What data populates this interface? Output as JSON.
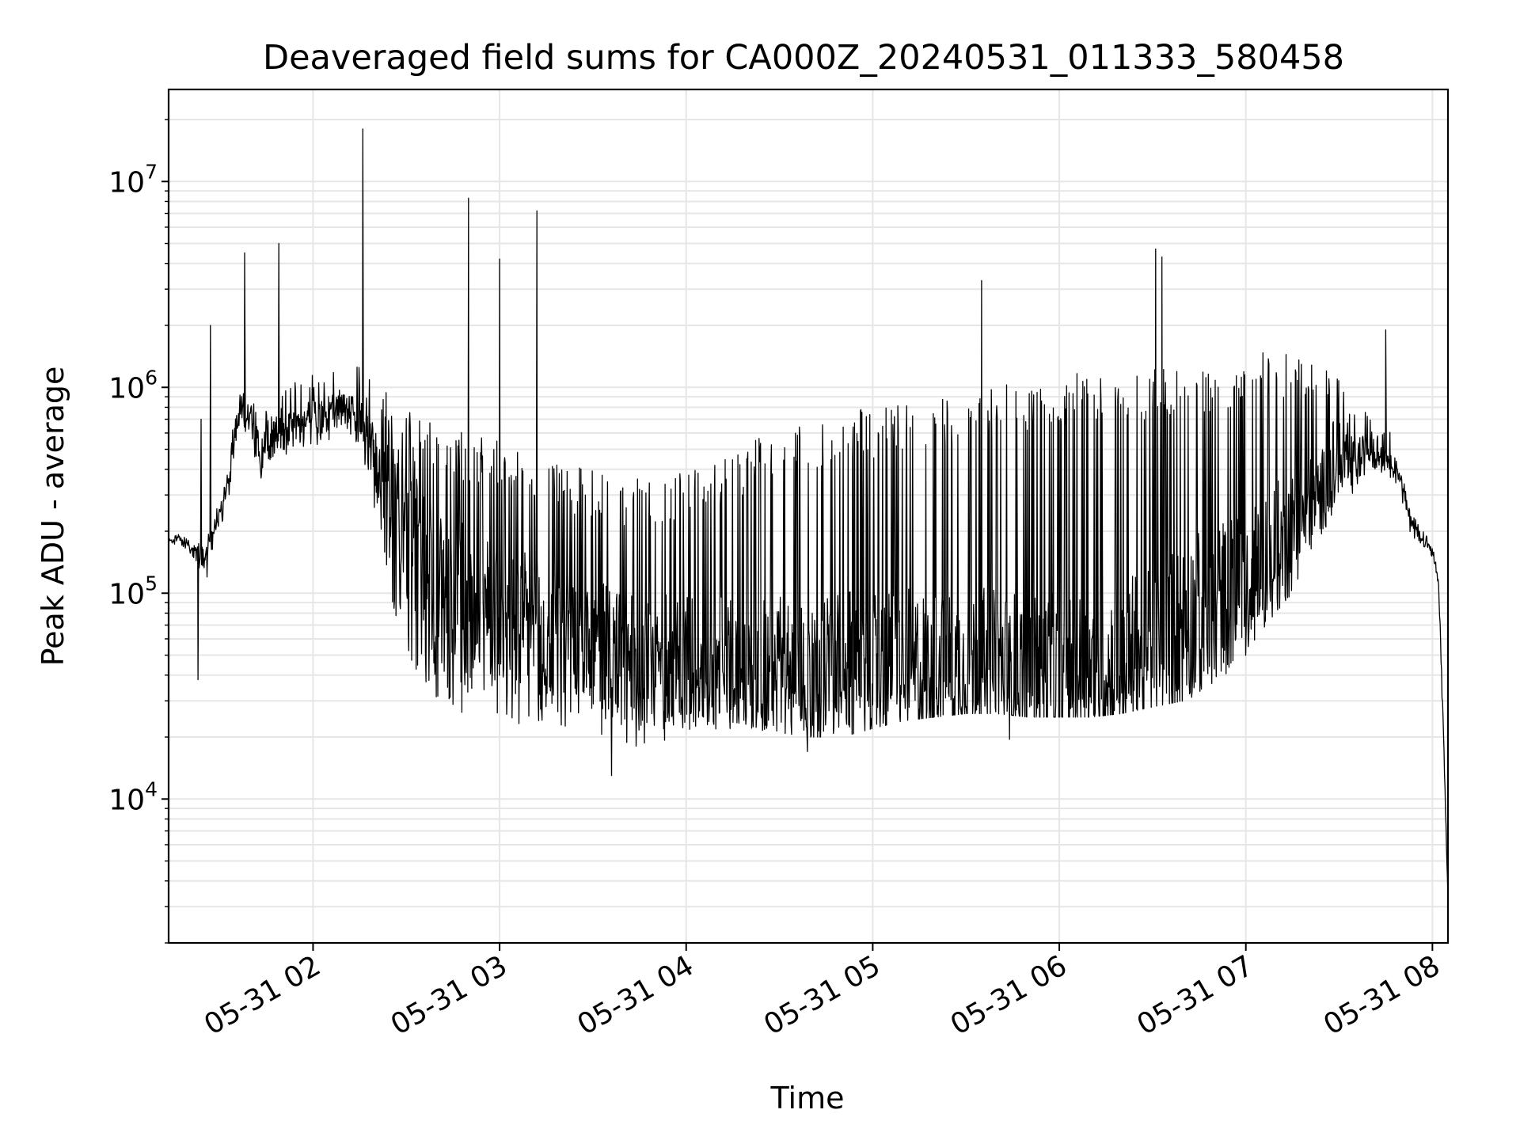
{
  "chart_data": {
    "type": "line",
    "title": "Deaveraged field sums for CA000Z_20240531_011333_580458",
    "xlabel": "Time",
    "ylabel": "Peak ADU - average",
    "x_scale": "time",
    "y_scale": "log",
    "xlim": [
      "2024-05-31 01:13:33",
      "2024-05-31 08:05:00"
    ],
    "ylim": [
      2000,
      28000000
    ],
    "grid": true,
    "legend": "none",
    "colors": {
      "line": "#000000",
      "grid": "#e6e6e6",
      "axes": "#000000",
      "background": "#ffffff"
    },
    "x_ticks": [
      {
        "time": "2024-05-31 02:00",
        "label": "05-31 02"
      },
      {
        "time": "2024-05-31 03:00",
        "label": "05-31 03"
      },
      {
        "time": "2024-05-31 04:00",
        "label": "05-31 04"
      },
      {
        "time": "2024-05-31 05:00",
        "label": "05-31 05"
      },
      {
        "time": "2024-05-31 06:00",
        "label": "05-31 06"
      },
      {
        "time": "2024-05-31 07:00",
        "label": "05-31 07"
      },
      {
        "time": "2024-05-31 08:00",
        "label": "05-31 08"
      }
    ],
    "y_ticks": [
      {
        "value": 10000,
        "base": "10",
        "exp": "4"
      },
      {
        "value": 100000,
        "base": "10",
        "exp": "5"
      },
      {
        "value": 1000000,
        "base": "10",
        "exp": "6"
      },
      {
        "value": 10000000,
        "base": "10",
        "exp": "7"
      }
    ],
    "series": [
      {
        "x": [
          "2024-05-31 01:13",
          "2024-05-31 01:17",
          "2024-05-31 01:20",
          "2024-05-31 01:23",
          "2024-05-31 01:24",
          "2024-05-31 01:25",
          "2024-05-31 01:27",
          "2024-05-31 01:30",
          "2024-05-31 01:33",
          "2024-05-31 01:34",
          "2024-05-31 01:35",
          "2024-05-31 01:37",
          "2024-05-31 01:40",
          "2024-05-31 01:43",
          "2024-05-31 01:45",
          "2024-05-31 01:47",
          "2024-05-31 01:50",
          "2024-05-31 01:55",
          "2024-05-31 02:00",
          "2024-05-31 02:05",
          "2024-05-31 02:10",
          "2024-05-31 02:15",
          "2024-05-31 02:20",
          "2024-05-31 02:25",
          "2024-05-31 02:30",
          "2024-05-31 02:40",
          "2024-05-31 02:50",
          "2024-05-31 03:00",
          "2024-05-31 03:10",
          "2024-05-31 03:20",
          "2024-05-31 03:30",
          "2024-05-31 03:40",
          "2024-05-31 03:50",
          "2024-05-31 04:00",
          "2024-05-31 04:10",
          "2024-05-31 04:20",
          "2024-05-31 04:30",
          "2024-05-31 04:40",
          "2024-05-31 04:50",
          "2024-05-31 05:00",
          "2024-05-31 05:10",
          "2024-05-31 05:20",
          "2024-05-31 05:30",
          "2024-05-31 05:40",
          "2024-05-31 05:50",
          "2024-05-31 06:00",
          "2024-05-31 06:10",
          "2024-05-31 06:20",
          "2024-05-31 06:30",
          "2024-05-31 06:40",
          "2024-05-31 06:50",
          "2024-05-31 07:00",
          "2024-05-31 07:05",
          "2024-05-31 07:10",
          "2024-05-31 07:15",
          "2024-05-31 07:20",
          "2024-05-31 07:25",
          "2024-05-31 07:30",
          "2024-05-31 07:35",
          "2024-05-31 07:40",
          "2024-05-31 07:45",
          "2024-05-31 07:48",
          "2024-05-31 07:50",
          "2024-05-31 07:52",
          "2024-05-31 07:55",
          "2024-05-31 07:58",
          "2024-05-31 08:00",
          "2024-05-31 08:02",
          "2024-05-31 08:03",
          "2024-05-31 08:04",
          "2024-05-31 08:05"
        ],
        "baseline": [
          175000,
          185000,
          170000,
          160000,
          150000,
          145000,
          180000,
          250000,
          350000,
          500000,
          600000,
          800000,
          700000,
          450000,
          480000,
          550000,
          600000,
          650000,
          700000,
          750000,
          800000,
          650000,
          450000,
          300000,
          200000,
          120000,
          95000,
          80000,
          70000,
          60000,
          55000,
          50000,
          48000,
          46000,
          45000,
          44000,
          43000,
          42000,
          41000,
          42000,
          43000,
          44000,
          45000,
          42000,
          40000,
          38000,
          40000,
          45000,
          55000,
          70000,
          90000,
          110000,
          140000,
          170000,
          200000,
          260000,
          320000,
          380000,
          450000,
          480000,
          470000,
          430000,
          350000,
          250000,
          200000,
          175000,
          160000,
          110000,
          40000,
          12000,
          3200
        ],
        "band_low": [
          170000,
          175000,
          160000,
          140000,
          120000,
          100000,
          150000,
          200000,
          300000,
          400000,
          500000,
          600000,
          400000,
          300000,
          350000,
          400000,
          450000,
          500000,
          500000,
          500000,
          600000,
          450000,
          250000,
          100000,
          40000,
          30000,
          25000,
          22000,
          22000,
          21000,
          20000,
          18000,
          18000,
          20000,
          22000,
          22000,
          21000,
          20000,
          20000,
          22000,
          24000,
          25000,
          26000,
          26000,
          25000,
          25000,
          25000,
          26000,
          28000,
          30000,
          35000,
          50000,
          60000,
          80000,
          100000,
          150000,
          200000,
          250000,
          300000,
          350000,
          380000,
          350000,
          300000,
          200000,
          180000,
          165000,
          150000,
          100000,
          35000,
          10000,
          3000
        ],
        "band_high": [
          180000,
          195000,
          180000,
          175000,
          170000,
          180000,
          200000,
          300000,
          400000,
          600000,
          800000,
          1000000,
          900000,
          800000,
          800000,
          900000,
          1000000,
          1100000,
          1200000,
          1200000,
          1300000,
          1300000,
          1100000,
          900000,
          800000,
          700000,
          600000,
          550000,
          500000,
          450000,
          400000,
          380000,
          350000,
          400000,
          450000,
          550000,
          650000,
          700000,
          750000,
          800000,
          850000,
          900000,
          950000,
          1000000,
          1100000,
          1150000,
          1200000,
          1200000,
          1250000,
          1300000,
          1350000,
          1400000,
          1500000,
          1500000,
          1500000,
          1400000,
          1300000,
          1100000,
          900000,
          750000,
          650000,
          550000,
          400000,
          280000,
          220000,
          190000,
          170000,
          120000,
          45000,
          13000,
          3500
        ]
      }
    ],
    "spikes": [
      {
        "time": "2024-05-31 01:24",
        "value": 700000
      },
      {
        "time": "2024-05-31 01:27",
        "value": 2000000
      },
      {
        "time": "2024-05-31 01:38",
        "value": 4500000
      },
      {
        "time": "2024-05-31 01:49",
        "value": 5000000
      },
      {
        "time": "2024-05-31 02:16",
        "value": 18000000
      },
      {
        "time": "2024-05-31 02:50",
        "value": 8300000
      },
      {
        "time": "2024-05-31 03:00",
        "value": 4200000
      },
      {
        "time": "2024-05-31 03:12",
        "value": 7200000
      },
      {
        "time": "2024-05-31 05:35",
        "value": 3300000
      },
      {
        "time": "2024-05-31 06:31",
        "value": 4700000
      },
      {
        "time": "2024-05-31 06:33",
        "value": 4300000
      },
      {
        "time": "2024-05-31 07:45",
        "value": 1900000
      }
    ],
    "dips": [
      {
        "time": "2024-05-31 01:23",
        "value": 38000
      },
      {
        "time": "2024-05-31 03:36",
        "value": 13000
      },
      {
        "time": "2024-05-31 04:39",
        "value": 17000
      },
      {
        "time": "2024-05-31 05:44",
        "value": 19500
      }
    ]
  }
}
